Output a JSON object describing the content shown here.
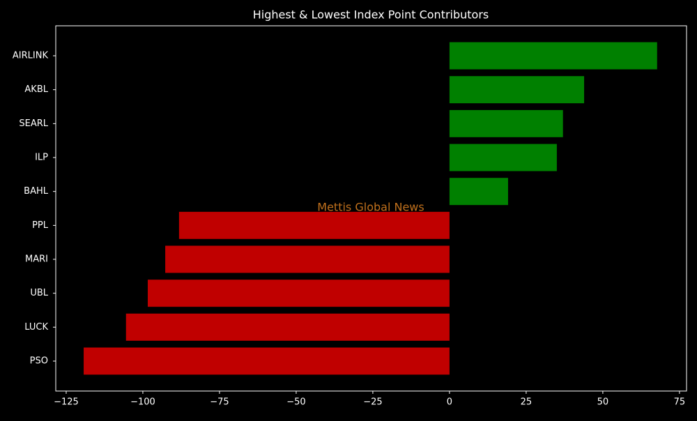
{
  "chart_data": {
    "type": "barh",
    "title": "Highest & Lowest Index Point Contributors",
    "annotation": "Mettis Global News",
    "categories": [
      "AIRLINK",
      "AKBL",
      "SEARL",
      "ILP",
      "BAHL",
      "PPL",
      "MARI",
      "UBL",
      "LUCK",
      "PSO"
    ],
    "values": [
      67.7,
      43.9,
      37.0,
      35.0,
      19.1,
      -88.2,
      -92.7,
      -98.4,
      -105.5,
      -119.3
    ],
    "colors": [
      "#008000",
      "#008000",
      "#008000",
      "#008000",
      "#008000",
      "#c00000",
      "#c00000",
      "#c00000",
      "#c00000",
      "#c00000"
    ],
    "xlim": [
      -128.4,
      77.3
    ],
    "xticks": [
      {
        "value": -125,
        "label": "−125"
      },
      {
        "value": -100,
        "label": "−100"
      },
      {
        "value": -75,
        "label": "−75"
      },
      {
        "value": -50,
        "label": "−50"
      },
      {
        "value": -25,
        "label": "−25"
      },
      0,
      25,
      50,
      75
    ]
  }
}
